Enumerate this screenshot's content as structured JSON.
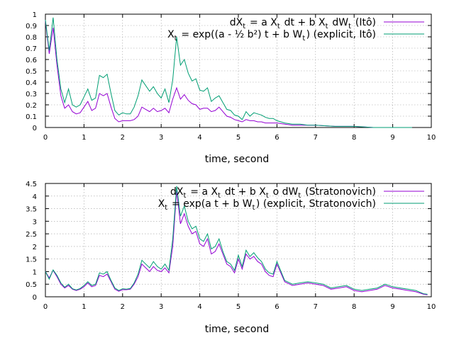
{
  "chart_data": [
    {
      "type": "line",
      "xlabel": "time, second",
      "ylabel": "",
      "xlim": [
        0,
        10
      ],
      "ylim": [
        0,
        1
      ],
      "xticks": [
        0,
        1,
        2,
        3,
        4,
        5,
        6,
        7,
        8,
        9,
        10
      ],
      "yticks": [
        0,
        0.1,
        0.2,
        0.3,
        0.4,
        0.5,
        0.6,
        0.7,
        0.8,
        0.9,
        1
      ],
      "grid": true,
      "legend_position": "top-right",
      "legend": [
        "dX_t = a X_t dt + b X_t dW_t (Itô)",
        "X_t = exp((a - ½ b²) t + b W_t) (explicit, Itô)"
      ],
      "series": [
        {
          "name": "dX_t = a X_t dt + b X_t dW_t (Itô)",
          "color": "#9400d3",
          "x": [
            0,
            0.1,
            0.2,
            0.3,
            0.4,
            0.5,
            0.6,
            0.7,
            0.8,
            0.9,
            1.0,
            1.1,
            1.2,
            1.3,
            1.4,
            1.5,
            1.6,
            1.7,
            1.8,
            1.9,
            2.0,
            2.1,
            2.2,
            2.3,
            2.4,
            2.5,
            2.6,
            2.7,
            2.8,
            2.9,
            3.0,
            3.1,
            3.2,
            3.3,
            3.4,
            3.5,
            3.6,
            3.7,
            3.8,
            3.9,
            4.0,
            4.1,
            4.2,
            4.3,
            4.4,
            4.5,
            4.6,
            4.7,
            4.8,
            4.9,
            5.0,
            5.1,
            5.2,
            5.3,
            5.4,
            5.5,
            5.6,
            5.7,
            5.8,
            5.9,
            6.0,
            6.2,
            6.4,
            6.6,
            6.8,
            7.0,
            7.5,
            8.0,
            8.5,
            9.0,
            9.5
          ],
          "y": [
            0.94,
            0.65,
            0.88,
            0.55,
            0.28,
            0.17,
            0.2,
            0.14,
            0.12,
            0.13,
            0.18,
            0.23,
            0.15,
            0.17,
            0.3,
            0.28,
            0.3,
            0.18,
            0.08,
            0.05,
            0.06,
            0.06,
            0.06,
            0.07,
            0.1,
            0.18,
            0.16,
            0.14,
            0.17,
            0.14,
            0.15,
            0.17,
            0.13,
            0.25,
            0.35,
            0.25,
            0.29,
            0.24,
            0.21,
            0.2,
            0.16,
            0.17,
            0.17,
            0.14,
            0.15,
            0.18,
            0.14,
            0.1,
            0.09,
            0.07,
            0.06,
            0.05,
            0.07,
            0.06,
            0.06,
            0.05,
            0.05,
            0.04,
            0.04,
            0.04,
            0.04,
            0.03,
            0.02,
            0.02,
            0.02,
            0.02,
            0.01,
            0.01,
            0.0,
            0.0,
            0.0
          ]
        },
        {
          "name": "X_t = exp((a - ½ b²) t + b W_t) (explicit, Itô)",
          "color": "#009e73",
          "x": [
            0,
            0.1,
            0.2,
            0.3,
            0.4,
            0.5,
            0.6,
            0.7,
            0.8,
            0.9,
            1.0,
            1.1,
            1.2,
            1.3,
            1.4,
            1.5,
            1.6,
            1.7,
            1.8,
            1.9,
            2.0,
            2.1,
            2.2,
            2.3,
            2.4,
            2.5,
            2.6,
            2.7,
            2.8,
            2.9,
            3.0,
            3.1,
            3.2,
            3.3,
            3.4,
            3.5,
            3.6,
            3.7,
            3.8,
            3.9,
            4.0,
            4.1,
            4.2,
            4.3,
            4.4,
            4.5,
            4.6,
            4.7,
            4.8,
            4.9,
            5.0,
            5.1,
            5.2,
            5.3,
            5.4,
            5.5,
            5.6,
            5.7,
            5.8,
            5.9,
            6.0,
            6.2,
            6.4,
            6.6,
            6.8,
            7.0,
            7.5,
            8.0,
            8.5,
            9.0,
            9.5
          ],
          "y": [
            0.95,
            0.68,
            0.97,
            0.6,
            0.34,
            0.22,
            0.34,
            0.2,
            0.18,
            0.2,
            0.27,
            0.34,
            0.24,
            0.26,
            0.46,
            0.44,
            0.47,
            0.3,
            0.15,
            0.11,
            0.13,
            0.12,
            0.12,
            0.18,
            0.28,
            0.42,
            0.37,
            0.32,
            0.36,
            0.3,
            0.26,
            0.34,
            0.22,
            0.42,
            0.8,
            0.55,
            0.6,
            0.48,
            0.41,
            0.43,
            0.33,
            0.32,
            0.35,
            0.23,
            0.26,
            0.28,
            0.22,
            0.16,
            0.15,
            0.11,
            0.1,
            0.07,
            0.14,
            0.1,
            0.13,
            0.12,
            0.11,
            0.09,
            0.08,
            0.08,
            0.06,
            0.04,
            0.03,
            0.03,
            0.02,
            0.02,
            0.01,
            0.01,
            0.0,
            0.0,
            0.0
          ]
        }
      ]
    },
    {
      "type": "line",
      "xlabel": "time, second",
      "ylabel": "",
      "xlim": [
        0,
        10
      ],
      "ylim": [
        0,
        4.5
      ],
      "xticks": [
        0,
        1,
        2,
        3,
        4,
        5,
        6,
        7,
        8,
        9,
        10
      ],
      "yticks": [
        0,
        0.5,
        1,
        1.5,
        2,
        2.5,
        3,
        3.5,
        4,
        4.5
      ],
      "grid": true,
      "legend_position": "top-right",
      "legend": [
        "dX_t = a X_t dt + b X_t o dW_t (Stratonovich)",
        "X_t = exp(a t + b W_t) (explicit, Stratonovich)"
      ],
      "series": [
        {
          "name": "dX_t = a X_t dt + b X_t o dW_t (Stratonovich)",
          "color": "#9400d3",
          "x": [
            0,
            0.1,
            0.2,
            0.3,
            0.4,
            0.5,
            0.6,
            0.7,
            0.8,
            0.9,
            1.0,
            1.1,
            1.2,
            1.3,
            1.4,
            1.5,
            1.6,
            1.7,
            1.8,
            1.9,
            2.0,
            2.1,
            2.2,
            2.3,
            2.4,
            2.5,
            2.6,
            2.7,
            2.8,
            2.9,
            3.0,
            3.1,
            3.2,
            3.3,
            3.4,
            3.5,
            3.6,
            3.7,
            3.8,
            3.9,
            4.0,
            4.1,
            4.2,
            4.3,
            4.4,
            4.5,
            4.6,
            4.7,
            4.8,
            4.9,
            5.0,
            5.1,
            5.2,
            5.3,
            5.4,
            5.5,
            5.6,
            5.7,
            5.8,
            5.9,
            6.0,
            6.2,
            6.4,
            6.6,
            6.8,
            7.0,
            7.2,
            7.4,
            7.6,
            7.8,
            8.0,
            8.2,
            8.4,
            8.6,
            8.8,
            9.0,
            9.2,
            9.4,
            9.6,
            9.8,
            9.9
          ],
          "y": [
            1.0,
            0.75,
            1.05,
            0.8,
            0.5,
            0.35,
            0.45,
            0.3,
            0.25,
            0.3,
            0.4,
            0.55,
            0.4,
            0.45,
            0.85,
            0.8,
            0.9,
            0.6,
            0.3,
            0.22,
            0.28,
            0.28,
            0.3,
            0.5,
            0.8,
            1.3,
            1.15,
            1.0,
            1.2,
            1.05,
            1.0,
            1.15,
            0.95,
            2.0,
            4.2,
            2.9,
            3.3,
            2.8,
            2.5,
            2.6,
            2.1,
            2.0,
            2.3,
            1.7,
            1.8,
            2.1,
            1.7,
            1.3,
            1.2,
            0.95,
            1.5,
            1.1,
            1.7,
            1.5,
            1.6,
            1.4,
            1.3,
            1.0,
            0.85,
            0.8,
            1.3,
            0.6,
            0.45,
            0.5,
            0.55,
            0.5,
            0.45,
            0.3,
            0.35,
            0.4,
            0.25,
            0.2,
            0.25,
            0.3,
            0.45,
            0.35,
            0.3,
            0.25,
            0.2,
            0.1,
            0.08
          ]
        },
        {
          "name": "X_t = exp(a t + b W_t) (explicit, Stratonovich)",
          "color": "#009e73",
          "x": [
            0,
            0.1,
            0.2,
            0.3,
            0.4,
            0.5,
            0.6,
            0.7,
            0.8,
            0.9,
            1.0,
            1.1,
            1.2,
            1.3,
            1.4,
            1.5,
            1.6,
            1.7,
            1.8,
            1.9,
            2.0,
            2.1,
            2.2,
            2.3,
            2.4,
            2.5,
            2.6,
            2.7,
            2.8,
            2.9,
            3.0,
            3.1,
            3.2,
            3.3,
            3.4,
            3.5,
            3.6,
            3.7,
            3.8,
            3.9,
            4.0,
            4.1,
            4.2,
            4.3,
            4.4,
            4.5,
            4.6,
            4.7,
            4.8,
            4.9,
            5.0,
            5.1,
            5.2,
            5.3,
            5.4,
            5.5,
            5.6,
            5.7,
            5.8,
            5.9,
            6.0,
            6.2,
            6.4,
            6.6,
            6.8,
            7.0,
            7.2,
            7.4,
            7.6,
            7.8,
            8.0,
            8.2,
            8.4,
            8.6,
            8.8,
            9.0,
            9.2,
            9.4,
            9.6,
            9.8,
            9.9
          ],
          "y": [
            1.0,
            0.7,
            1.07,
            0.85,
            0.55,
            0.38,
            0.5,
            0.32,
            0.27,
            0.33,
            0.45,
            0.6,
            0.45,
            0.5,
            0.95,
            0.9,
            1.0,
            0.65,
            0.35,
            0.25,
            0.32,
            0.3,
            0.33,
            0.55,
            0.9,
            1.45,
            1.3,
            1.15,
            1.4,
            1.2,
            1.1,
            1.3,
            1.05,
            2.3,
            4.4,
            3.2,
            3.6,
            3.0,
            2.7,
            2.8,
            2.3,
            2.2,
            2.5,
            1.9,
            2.0,
            2.3,
            1.8,
            1.4,
            1.3,
            1.05,
            1.65,
            1.2,
            1.85,
            1.6,
            1.75,
            1.55,
            1.4,
            1.1,
            0.95,
            0.9,
            1.4,
            0.65,
            0.5,
            0.55,
            0.6,
            0.55,
            0.5,
            0.35,
            0.4,
            0.45,
            0.3,
            0.25,
            0.3,
            0.35,
            0.5,
            0.4,
            0.35,
            0.3,
            0.25,
            0.12,
            0.1
          ]
        }
      ]
    }
  ]
}
